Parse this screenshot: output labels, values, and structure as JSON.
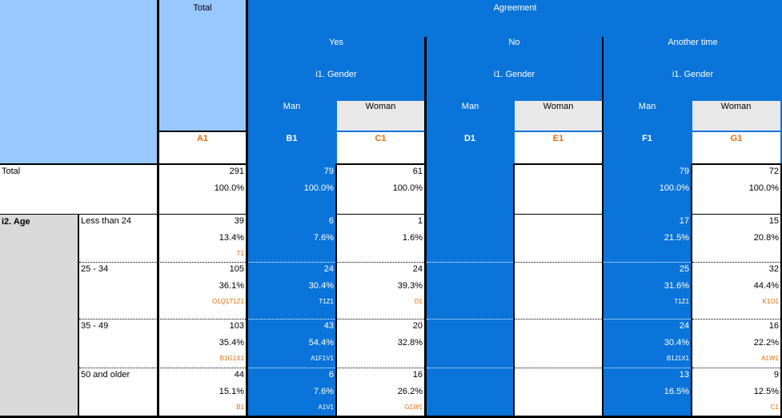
{
  "colors": {
    "blue": "#0a74da",
    "lightblue": "#99c7ff",
    "gray": "#d9d9d9",
    "header_gray": "#e8e8e8",
    "orange": "#e36c09"
  },
  "header": {
    "total": "Total",
    "agreement": "Agreement",
    "groups": [
      "Yes",
      "No",
      "Another time"
    ],
    "gender": "i1. Gender",
    "man": "Man",
    "woman": "Woman",
    "codes": [
      "A1",
      "B1",
      "C1",
      "D1",
      "E1",
      "F1",
      "G1"
    ]
  },
  "total_row": {
    "label": "Total",
    "counts": [
      "291",
      "79",
      "61",
      "",
      "",
      "79",
      "72"
    ],
    "pcts": [
      "100.0%",
      "100.0%",
      "100.0%",
      "",
      "",
      "100.0%",
      "100.0%"
    ]
  },
  "age": {
    "label": "i2. Age",
    "rows": [
      {
        "label": "Less than 24",
        "counts": [
          "39",
          "6",
          "1",
          "",
          "",
          "17",
          "15"
        ],
        "pcts": [
          "13.4%",
          "7.6%",
          "1.6%",
          "",
          "",
          "21.5%",
          "20.8%"
        ],
        "sig": [
          "T1",
          "",
          "",
          "",
          "",
          "",
          ""
        ]
      },
      {
        "label": "25 - 34",
        "counts": [
          "105",
          "24",
          "24",
          "",
          "",
          "25",
          "32"
        ],
        "pcts": [
          "36.1%",
          "30.4%",
          "39.3%",
          "",
          "",
          "31.6%",
          "44.4%"
        ],
        "sig": [
          "O1Q1T1Z1",
          "T1Z1",
          "O1",
          "",
          "",
          "T1Z1",
          "K1O1"
        ]
      },
      {
        "label": "35 - 49",
        "counts": [
          "103",
          "43",
          "20",
          "",
          "",
          "24",
          "16"
        ],
        "pcts": [
          "35.4%",
          "54.4%",
          "32.8%",
          "",
          "",
          "30.4%",
          "22.2%"
        ],
        "sig": [
          "B1G1X1",
          "A1F1V1",
          "",
          "",
          "",
          "B1J1X1",
          "A1W1"
        ]
      },
      {
        "label": "50 and older",
        "counts": [
          "44",
          "6",
          "16",
          "",
          "",
          "13",
          "9"
        ],
        "pcts": [
          "15.1%",
          "7.6%",
          "26.2%",
          "",
          "",
          "16.5%",
          "12.5%"
        ],
        "sig": [
          "B1",
          "A1V1",
          "G1W1",
          "",
          "",
          "",
          "C1"
        ]
      }
    ]
  }
}
